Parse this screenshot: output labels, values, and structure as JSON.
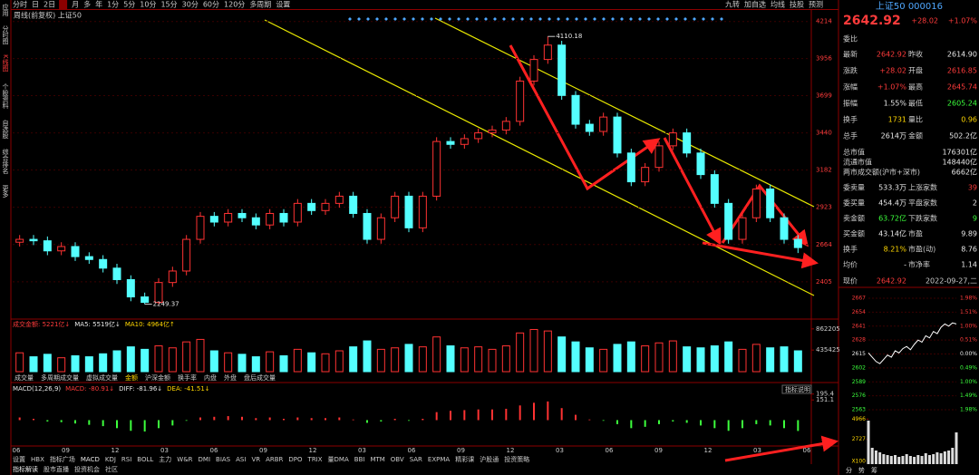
{
  "toolbar": {
    "left": [
      "分时",
      "日",
      "2日",
      "周",
      "月",
      "多",
      "年",
      "1分",
      "5分",
      "10分",
      "15分",
      "30分",
      "60分",
      "120分",
      "多周期",
      "设置"
    ],
    "right": [
      "九转",
      "加自选",
      "均线",
      "技股",
      "预测"
    ]
  },
  "sidebar": [
    "应用",
    "分时图",
    "K线图",
    "个股资料",
    "自选股",
    "综合排名",
    "更多"
  ],
  "main_chart": {
    "title": "周线(前复权) 上证50",
    "ylim": [
      2190,
      4250
    ],
    "yticks": [
      4214,
      3956,
      3699,
      3440,
      3182,
      2923,
      2664,
      2405
    ],
    "candles": [
      [
        2680,
        2730,
        2650,
        2700
      ],
      [
        2700,
        2730,
        2660,
        2690
      ],
      [
        2690,
        2720,
        2590,
        2620
      ],
      [
        2620,
        2680,
        2590,
        2650
      ],
      [
        2650,
        2680,
        2550,
        2580
      ],
      [
        2580,
        2610,
        2530,
        2560
      ],
      [
        2560,
        2590,
        2470,
        2500
      ],
      [
        2500,
        2530,
        2390,
        2420
      ],
      [
        2420,
        2450,
        2270,
        2300
      ],
      [
        2300,
        2330,
        2249.37,
        2262
      ],
      [
        2262,
        2430,
        2250,
        2400
      ],
      [
        2400,
        2510,
        2370,
        2480
      ],
      [
        2480,
        2730,
        2450,
        2700
      ],
      [
        2700,
        2890,
        2670,
        2860
      ],
      [
        2860,
        2890,
        2790,
        2820
      ],
      [
        2820,
        2910,
        2790,
        2880
      ],
      [
        2880,
        2910,
        2820,
        2850
      ],
      [
        2850,
        2880,
        2770,
        2800
      ],
      [
        2800,
        2910,
        2770,
        2880
      ],
      [
        2880,
        2910,
        2790,
        2820
      ],
      [
        2820,
        2980,
        2790,
        2950
      ],
      [
        2950,
        2980,
        2870,
        2900
      ],
      [
        2900,
        2980,
        2870,
        2950
      ],
      [
        2950,
        3030,
        2920,
        3000
      ],
      [
        3000,
        3030,
        2850,
        2880
      ],
      [
        2880,
        2910,
        2670,
        2700
      ],
      [
        2700,
        2880,
        2670,
        2850
      ],
      [
        2850,
        3030,
        2820,
        3000
      ],
      [
        3000,
        3030,
        2750,
        2780
      ],
      [
        2780,
        3030,
        2750,
        3000
      ],
      [
        3000,
        3410,
        2970,
        3380
      ],
      [
        3380,
        3410,
        3330,
        3360
      ],
      [
        3360,
        3430,
        3330,
        3400
      ],
      [
        3400,
        3470,
        3370,
        3440
      ],
      [
        3440,
        3490,
        3410,
        3460
      ],
      [
        3460,
        3550,
        3430,
        3520
      ],
      [
        3520,
        3830,
        3490,
        3800
      ],
      [
        3800,
        3980,
        3770,
        3950
      ],
      [
        3950,
        4110.18,
        3920,
        4050
      ],
      [
        4050,
        4080,
        3670,
        3700
      ],
      [
        3700,
        3730,
        3470,
        3500
      ],
      [
        3500,
        3530,
        3420,
        3450
      ],
      [
        3450,
        3580,
        3420,
        3550
      ],
      [
        3550,
        3580,
        3270,
        3300
      ],
      [
        3300,
        3330,
        3070,
        3100
      ],
      [
        3100,
        3230,
        3070,
        3200
      ],
      [
        3200,
        3380,
        3170,
        3350
      ],
      [
        3350,
        3470,
        3320,
        3440
      ],
      [
        3440,
        3470,
        3270,
        3300
      ],
      [
        3300,
        3330,
        3120,
        3150
      ],
      [
        3150,
        3180,
        2920,
        2950
      ],
      [
        2950,
        2980,
        2670,
        2700
      ],
      [
        2700,
        2880,
        2670,
        2850
      ],
      [
        2850,
        3080,
        2820,
        3050
      ],
      [
        3050,
        3080,
        2820,
        2850
      ],
      [
        2850,
        2880,
        2670,
        2700
      ],
      [
        2700,
        2730,
        2605,
        2642.92
      ]
    ]
  },
  "volume_chart": {
    "legend": [
      "成交金额: 5221亿↓",
      "MA5: 5519亿↓",
      "MA10: 4964亿↑"
    ],
    "ylim": [
      0,
      950000
    ],
    "yticks": [
      862205,
      435425
    ],
    "values": [
      380000,
      300000,
      350000,
      280000,
      320000,
      300000,
      360000,
      420000,
      500000,
      450000,
      520000,
      480000,
      600000,
      650000,
      420000,
      380000,
      350000,
      300000,
      400000,
      320000,
      450000,
      380000,
      360000,
      420000,
      500000,
      620000,
      450000,
      480000,
      550000,
      500000,
      700000,
      520000,
      480000,
      500000,
      450000,
      520000,
      780000,
      850000,
      820000,
      700000,
      600000,
      480000,
      450000,
      550000,
      600000,
      520000,
      580000,
      620000,
      500000,
      480000,
      520000,
      600000,
      450000,
      550000,
      480000,
      500000,
      420000
    ]
  },
  "volume_tabs": [
    "成交量",
    "多周期成交量",
    "虚拟成交量",
    "金额",
    "沪深金额",
    "换手率",
    "内盘",
    "外盘",
    "盘后成交量"
  ],
  "macd_chart": {
    "legend": [
      "MACD(12,26,9)",
      "MACD: -80.91↓",
      "DIFF: -81.96↓",
      "DEA: -41.51↓"
    ],
    "button": "指标说明",
    "ylim": [
      -180,
      200
    ],
    "yticks": [
      195.4,
      151.1
    ],
    "values": [
      20,
      10,
      -10,
      -15,
      -25,
      -35,
      -45,
      -60,
      -80,
      -85,
      -60,
      -40,
      -5,
      20,
      25,
      30,
      25,
      15,
      20,
      10,
      20,
      15,
      15,
      20,
      5,
      -20,
      -10,
      10,
      -5,
      10,
      60,
      70,
      75,
      80,
      80,
      85,
      110,
      130,
      140,
      90,
      40,
      5,
      -5,
      -30,
      -60,
      -50,
      -30,
      -10,
      -20,
      -40,
      -60,
      -80,
      -60,
      -30,
      -40,
      -60,
      -81
    ]
  },
  "x_labels": [
    "06",
    "09",
    "12",
    "03",
    "06",
    "09",
    "12",
    "03",
    "06",
    "09",
    "12",
    "03",
    "06",
    "09",
    "12",
    "03",
    "06"
  ],
  "indicator_tabs": [
    "设置",
    "HBX",
    "指标广场",
    "MACD",
    "KDJ",
    "RSI",
    "BOLL",
    "主力",
    "W&R",
    "DMI",
    "BIAS",
    "ASI",
    "VR",
    "ARBR",
    "DPO",
    "TRIX",
    "量DMA",
    "BBI",
    "MTM",
    "OBV",
    "SAR",
    "EXPMA",
    "精彩课",
    "沪股通",
    "投资策略"
  ],
  "bottom_tabs": [
    "指标解读",
    "股市直播",
    "投资机会",
    "社区"
  ],
  "quote": {
    "name": "上证50 000016",
    "price": "2642.92",
    "change": "+28.02",
    "pct": "+1.07%",
    "weibi": "委比",
    "rows": [
      [
        "最新",
        "2642.92",
        "昨收",
        "2614.90"
      ],
      [
        "涨跌",
        "+28.02",
        "开盘",
        "2616.85"
      ],
      [
        "涨幅",
        "+1.07%",
        "最高",
        "2645.74"
      ],
      [
        "振幅",
        "1.55%",
        "最低",
        "2605.24"
      ],
      [
        "换手",
        "1731",
        "量比",
        "0.96"
      ],
      [
        "总手",
        "2614万",
        "金额",
        "502.2亿"
      ]
    ],
    "wide_rows": [
      [
        "总市值",
        "176301亿"
      ],
      [
        "流通市值",
        "148440亿"
      ],
      [
        "两市成交额(沪市+深市)",
        "6662亿"
      ]
    ],
    "rows2": [
      [
        "委卖量",
        "533.3万",
        "上涨家数",
        "39"
      ],
      [
        "委买量",
        "454.4万",
        "平盘家数",
        "2"
      ],
      [
        "卖金额",
        "63.72亿",
        "下跌家数",
        "9"
      ],
      [
        "买金额",
        "43.14亿",
        "市盈",
        "9.89"
      ],
      [
        "换手",
        "8.21%",
        "市盈(动)",
        "8.76"
      ],
      [
        "均价",
        "-",
        "市净率",
        "1.14"
      ]
    ],
    "footer": [
      "现价",
      "2642.92",
      "2022-09-27,二"
    ]
  },
  "intraday": {
    "ylim": [
      2563,
      2667
    ],
    "yticks": [
      2667,
      2654,
      2641,
      2628,
      2615,
      2602,
      2589,
      2576,
      2563
    ],
    "right_labels": [
      "1.98%",
      "1.51%",
      "1.00%",
      "0.51%",
      "0.00%",
      "0.49%",
      "1.00%",
      "1.49%",
      "1.98%"
    ],
    "values": [
      2616,
      2612,
      2608,
      2606,
      2610,
      2614,
      2612,
      2618,
      2616,
      2620,
      2622,
      2619,
      2624,
      2628,
      2626,
      2632,
      2630,
      2636,
      2634,
      2640,
      2643,
      2641,
      2644,
      2643
    ],
    "vol_ylim": [
      0,
      5000
    ],
    "vol_ticks": [
      4966,
      2727
    ],
    "vol_unit": "X100",
    "volumes": [
      4800,
      1800,
      1500,
      1300,
      1100,
      1000,
      900,
      1000,
      800,
      900,
      1100,
      900,
      800,
      1000,
      900,
      1200,
      1000,
      1100,
      1300,
      1200,
      1400,
      1500,
      1800,
      3500
    ],
    "tabs": [
      "分",
      "势",
      "筹"
    ]
  }
}
